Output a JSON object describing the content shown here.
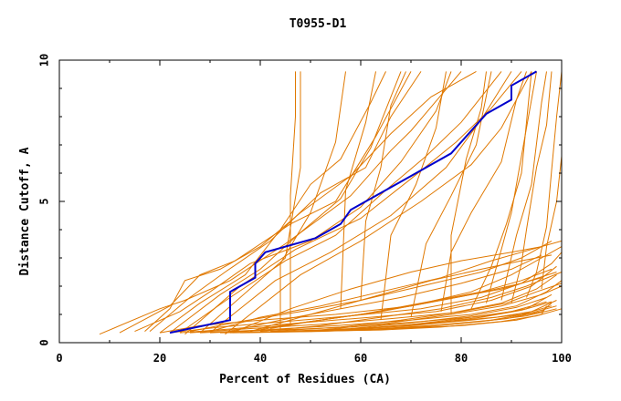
{
  "chart_data": {
    "type": "line",
    "title": "T0955-D1",
    "xlabel": "Percent of Residues (CA)",
    "ylabel": "Distance Cutoff, A",
    "xlim": [
      0,
      100
    ],
    "ylim": [
      0,
      10
    ],
    "x_ticks": [
      0,
      20,
      40,
      60,
      80,
      100
    ],
    "y_ticks": [
      0,
      5,
      10
    ],
    "grid": false,
    "colors": {
      "highlight": "#0000cc",
      "others": "#e07800",
      "frame": "#000000"
    },
    "highlight_series": {
      "points": [
        [
          22,
          0.35
        ],
        [
          34,
          0.8
        ],
        [
          34,
          1.8
        ],
        [
          37,
          2.1
        ],
        [
          39,
          2.3
        ],
        [
          39,
          2.8
        ],
        [
          41,
          3.2
        ],
        [
          51,
          3.7
        ],
        [
          54,
          4.0
        ],
        [
          56,
          4.2
        ],
        [
          58,
          4.7
        ],
        [
          62,
          5.1
        ],
        [
          70,
          5.9
        ],
        [
          78,
          6.7
        ],
        [
          85,
          8.1
        ],
        [
          90,
          8.6
        ],
        [
          90,
          9.1
        ],
        [
          95,
          9.6
        ]
      ]
    },
    "other_series": [
      [
        [
          8,
          0.3
        ],
        [
          20,
          1.2
        ],
        [
          25,
          1.5
        ],
        [
          34,
          2.2
        ],
        [
          45,
          3.5
        ],
        [
          58,
          5.2
        ],
        [
          66,
          6.8
        ],
        [
          70,
          7.5
        ],
        [
          80,
          9.6
        ]
      ],
      [
        [
          12,
          0.35
        ],
        [
          22,
          1.3
        ],
        [
          28,
          2.4
        ],
        [
          35,
          2.9
        ],
        [
          46,
          4.2
        ],
        [
          55,
          5.0
        ],
        [
          63,
          7.3
        ],
        [
          70,
          9.6
        ]
      ],
      [
        [
          15,
          0.4
        ],
        [
          24,
          1.1
        ],
        [
          30,
          1.8
        ],
        [
          38,
          2.8
        ],
        [
          50,
          3.6
        ],
        [
          60,
          4.8
        ],
        [
          68,
          6.4
        ],
        [
          75,
          8.2
        ],
        [
          78,
          9.6
        ]
      ],
      [
        [
          18,
          0.4
        ],
        [
          26,
          1.6
        ],
        [
          33,
          2.5
        ],
        [
          42,
          3.6
        ],
        [
          52,
          5.3
        ],
        [
          61,
          6.2
        ],
        [
          66,
          8.0
        ],
        [
          72,
          9.6
        ]
      ],
      [
        [
          20,
          0.35
        ],
        [
          28,
          1.4
        ],
        [
          37,
          2.4
        ],
        [
          44,
          4.0
        ],
        [
          50,
          5.6
        ],
        [
          56,
          6.5
        ],
        [
          62,
          8.5
        ],
        [
          65,
          9.6
        ]
      ],
      [
        [
          22,
          0.35
        ],
        [
          32,
          1.7
        ],
        [
          40,
          2.6
        ],
        [
          48,
          3.9
        ],
        [
          56,
          5.1
        ],
        [
          62,
          6.9
        ],
        [
          68,
          9.6
        ]
      ],
      [
        [
          17,
          0.4
        ],
        [
          22,
          1.2
        ],
        [
          25,
          2.2
        ],
        [
          32,
          2.6
        ],
        [
          40,
          3.4
        ],
        [
          48,
          4.6
        ],
        [
          58,
          5.9
        ],
        [
          66,
          7.4
        ],
        [
          74,
          8.7
        ],
        [
          83,
          9.6
        ]
      ],
      [
        [
          24,
          0.35
        ],
        [
          34,
          1.6
        ],
        [
          45,
          2.9
        ],
        [
          55,
          3.8
        ],
        [
          65,
          5.4
        ],
        [
          73,
          6.6
        ],
        [
          80,
          7.8
        ],
        [
          88,
          9.6
        ]
      ],
      [
        [
          25,
          0.3
        ],
        [
          36,
          2.0
        ],
        [
          47,
          3.3
        ],
        [
          60,
          4.4
        ],
        [
          70,
          5.8
        ],
        [
          79,
          7.1
        ],
        [
          86,
          8.3
        ],
        [
          92,
          9.6
        ]
      ],
      [
        [
          30,
          0.35
        ],
        [
          43,
          2.2
        ],
        [
          54,
          3.2
        ],
        [
          66,
          4.5
        ],
        [
          77,
          6.2
        ],
        [
          84,
          7.9
        ],
        [
          90,
          9.6
        ]
      ],
      [
        [
          33,
          0.3
        ],
        [
          48,
          2.4
        ],
        [
          60,
          3.6
        ],
        [
          72,
          5.0
        ],
        [
          82,
          6.3
        ],
        [
          88,
          7.6
        ],
        [
          94,
          9.6
        ]
      ],
      [
        [
          28,
          0.35
        ],
        [
          45,
          3.0
        ],
        [
          48,
          6.2
        ],
        [
          48,
          9.6
        ]
      ],
      [
        [
          46,
          0.6
        ],
        [
          46,
          5.2
        ],
        [
          47,
          8.0
        ],
        [
          47,
          9.6
        ]
      ],
      [
        [
          44,
          0.5
        ],
        [
          44,
          2.8
        ],
        [
          50,
          4.6
        ],
        [
          55,
          7.1
        ],
        [
          57,
          9.6
        ]
      ],
      [
        [
          56,
          1.2
        ],
        [
          57,
          5.4
        ],
        [
          61,
          7.8
        ],
        [
          63,
          9.6
        ]
      ],
      [
        [
          60,
          1.5
        ],
        [
          61,
          4.3
        ],
        [
          64,
          6.2
        ],
        [
          66,
          8.4
        ],
        [
          69,
          9.6
        ]
      ],
      [
        [
          64,
          0.8
        ],
        [
          66,
          3.8
        ],
        [
          71,
          5.6
        ],
        [
          75,
          7.6
        ],
        [
          77,
          9.6
        ]
      ],
      [
        [
          70,
          0.9
        ],
        [
          73,
          3.5
        ],
        [
          78,
          5.2
        ],
        [
          83,
          7.0
        ],
        [
          86,
          9.6
        ]
      ],
      [
        [
          76,
          1.1
        ],
        [
          78,
          3.2
        ],
        [
          82,
          4.6
        ],
        [
          88,
          6.4
        ],
        [
          91,
          8.6
        ],
        [
          93,
          9.6
        ]
      ],
      [
        [
          78,
          1.0
        ],
        [
          78,
          3.8
        ],
        [
          81,
          6.5
        ],
        [
          84,
          8.3
        ],
        [
          85,
          9.6
        ]
      ],
      [
        [
          82,
          1.2
        ],
        [
          86,
          2.7
        ],
        [
          89,
          4.2
        ],
        [
          92,
          6.0
        ],
        [
          94,
          9.6
        ]
      ],
      [
        [
          85,
          1.4
        ],
        [
          88,
          3.3
        ],
        [
          90,
          4.6
        ],
        [
          93,
          7.6
        ],
        [
          95,
          9.6
        ]
      ],
      [
        [
          88,
          1.5
        ],
        [
          91,
          3.8
        ],
        [
          94,
          5.6
        ],
        [
          96,
          8.5
        ],
        [
          97,
          9.6
        ]
      ],
      [
        [
          90,
          1.4
        ],
        [
          92,
          2.8
        ],
        [
          93,
          4.0
        ],
        [
          95,
          6.2
        ],
        [
          97,
          7.7
        ],
        [
          98,
          9.6
        ]
      ],
      [
        [
          93,
          1.6
        ],
        [
          95,
          2.5
        ],
        [
          97,
          4.1
        ],
        [
          98,
          6.1
        ],
        [
          99,
          8.0
        ],
        [
          100,
          9.6
        ]
      ],
      [
        [
          96,
          1.9
        ],
        [
          97,
          3.4
        ],
        [
          99,
          5.0
        ],
        [
          100,
          6.6
        ]
      ],
      [
        [
          20,
          0.35
        ],
        [
          28,
          0.6
        ],
        [
          40,
          0.8
        ],
        [
          55,
          1.0
        ],
        [
          70,
          1.3
        ],
        [
          82,
          1.8
        ],
        [
          90,
          2.4
        ],
        [
          96,
          3.0
        ],
        [
          100,
          3.4
        ]
      ],
      [
        [
          22,
          0.35
        ],
        [
          32,
          0.55
        ],
        [
          45,
          0.75
        ],
        [
          58,
          0.95
        ],
        [
          72,
          1.2
        ],
        [
          84,
          1.6
        ],
        [
          92,
          2.1
        ],
        [
          98,
          2.8
        ],
        [
          100,
          3.2
        ]
      ],
      [
        [
          24,
          0.35
        ],
        [
          35,
          0.5
        ],
        [
          48,
          0.7
        ],
        [
          62,
          0.9
        ],
        [
          75,
          1.1
        ],
        [
          86,
          1.5
        ],
        [
          94,
          2.0
        ],
        [
          99,
          2.7
        ]
      ],
      [
        [
          26,
          0.35
        ],
        [
          38,
          0.5
        ],
        [
          52,
          0.65
        ],
        [
          66,
          0.85
        ],
        [
          78,
          1.05
        ],
        [
          88,
          1.4
        ],
        [
          95,
          1.9
        ],
        [
          99,
          2.4
        ]
      ],
      [
        [
          28,
          0.35
        ],
        [
          40,
          0.45
        ],
        [
          55,
          0.6
        ],
        [
          70,
          0.8
        ],
        [
          82,
          1.0
        ],
        [
          91,
          1.3
        ],
        [
          97,
          1.8
        ],
        [
          100,
          2.2
        ]
      ],
      [
        [
          30,
          0.35
        ],
        [
          43,
          0.45
        ],
        [
          58,
          0.55
        ],
        [
          72,
          0.75
        ],
        [
          85,
          0.95
        ],
        [
          93,
          1.2
        ],
        [
          98,
          1.7
        ]
      ],
      [
        [
          32,
          0.35
        ],
        [
          46,
          0.4
        ],
        [
          60,
          0.5
        ],
        [
          74,
          0.7
        ],
        [
          87,
          0.9
        ],
        [
          94,
          1.1
        ],
        [
          99,
          1.5
        ]
      ],
      [
        [
          34,
          0.35
        ],
        [
          50,
          0.4
        ],
        [
          64,
          0.5
        ],
        [
          78,
          0.65
        ],
        [
          89,
          0.85
        ],
        [
          96,
          1.1
        ],
        [
          98,
          1.4
        ]
      ],
      [
        [
          36,
          0.35
        ],
        [
          52,
          0.4
        ],
        [
          67,
          0.5
        ],
        [
          80,
          0.6
        ],
        [
          91,
          0.8
        ],
        [
          96,
          1.0
        ],
        [
          97,
          1.3
        ]
      ],
      [
        [
          26,
          0.4
        ],
        [
          36,
          0.75
        ],
        [
          48,
          1.1
        ],
        [
          60,
          1.5
        ],
        [
          72,
          2.0
        ],
        [
          84,
          2.5
        ],
        [
          92,
          3.0
        ],
        [
          98,
          3.6
        ]
      ],
      [
        [
          30,
          0.4
        ],
        [
          40,
          0.9
        ],
        [
          52,
          1.3
        ],
        [
          64,
          1.8
        ],
        [
          76,
          2.3
        ],
        [
          86,
          2.9
        ],
        [
          94,
          3.3
        ],
        [
          100,
          3.6
        ]
      ],
      [
        [
          34,
          0.4
        ],
        [
          44,
          0.8
        ],
        [
          56,
          1.2
        ],
        [
          68,
          1.6
        ],
        [
          80,
          2.1
        ],
        [
          90,
          2.6
        ],
        [
          96,
          3.1
        ]
      ],
      [
        [
          38,
          0.4
        ],
        [
          48,
          0.7
        ],
        [
          60,
          1.0
        ],
        [
          72,
          1.4
        ],
        [
          84,
          1.8
        ],
        [
          92,
          2.2
        ],
        [
          98,
          2.6
        ]
      ],
      [
        [
          40,
          0.4
        ],
        [
          52,
          0.6
        ],
        [
          64,
          0.9
        ],
        [
          76,
          1.2
        ],
        [
          86,
          1.6
        ],
        [
          93,
          2.0
        ],
        [
          100,
          2.5
        ]
      ],
      [
        [
          42,
          0.4
        ],
        [
          56,
          0.55
        ],
        [
          68,
          0.8
        ],
        [
          80,
          1.1
        ],
        [
          89,
          1.4
        ],
        [
          95,
          1.8
        ],
        [
          100,
          2.1
        ]
      ],
      [
        [
          44,
          0.4
        ],
        [
          58,
          0.5
        ],
        [
          70,
          0.7
        ],
        [
          82,
          0.95
        ],
        [
          91,
          1.25
        ],
        [
          97,
          1.6
        ]
      ],
      [
        [
          46,
          0.4
        ],
        [
          60,
          0.5
        ],
        [
          72,
          0.65
        ],
        [
          84,
          0.9
        ],
        [
          92,
          1.15
        ],
        [
          98,
          1.45
        ]
      ],
      [
        [
          48,
          0.4
        ],
        [
          62,
          0.45
        ],
        [
          74,
          0.6
        ],
        [
          86,
          0.8
        ],
        [
          94,
          1.05
        ],
        [
          99,
          1.3
        ]
      ],
      [
        [
          50,
          0.4
        ],
        [
          64,
          0.45
        ],
        [
          76,
          0.55
        ],
        [
          88,
          0.75
        ],
        [
          95,
          0.95
        ],
        [
          100,
          1.2
        ]
      ],
      [
        [
          38,
          0.4
        ],
        [
          50,
          1.0
        ],
        [
          62,
          1.6
        ],
        [
          74,
          2.2
        ],
        [
          84,
          2.6
        ],
        [
          92,
          2.9
        ],
        [
          98,
          3.1
        ]
      ],
      [
        [
          35,
          0.4
        ],
        [
          46,
          1.2
        ],
        [
          58,
          1.9
        ],
        [
          70,
          2.5
        ],
        [
          80,
          2.9
        ],
        [
          90,
          3.2
        ],
        [
          96,
          3.4
        ]
      ],
      [
        [
          52,
          0.45
        ],
        [
          66,
          0.7
        ],
        [
          78,
          1.0
        ],
        [
          88,
          1.3
        ],
        [
          96,
          1.7
        ],
        [
          100,
          2.0
        ]
      ],
      [
        [
          54,
          0.45
        ],
        [
          68,
          0.6
        ],
        [
          80,
          0.85
        ],
        [
          90,
          1.1
        ],
        [
          97,
          1.45
        ]
      ],
      [
        [
          56,
          0.45
        ],
        [
          70,
          0.6
        ],
        [
          82,
          0.8
        ],
        [
          92,
          1.0
        ],
        [
          98,
          1.3
        ]
      ],
      [
        [
          58,
          0.45
        ],
        [
          72,
          0.55
        ],
        [
          84,
          0.75
        ],
        [
          93,
          0.95
        ],
        [
          99,
          1.2
        ]
      ],
      [
        [
          40,
          0.5
        ],
        [
          46,
          0.65
        ],
        [
          54,
          0.85
        ],
        [
          64,
          1.1
        ],
        [
          76,
          1.5
        ],
        [
          88,
          1.9
        ],
        [
          96,
          2.3
        ]
      ],
      [
        [
          42,
          0.5
        ],
        [
          50,
          0.75
        ],
        [
          60,
          1.0
        ],
        [
          70,
          1.3
        ],
        [
          82,
          1.7
        ],
        [
          92,
          2.1
        ],
        [
          99,
          2.5
        ]
      ]
    ]
  }
}
